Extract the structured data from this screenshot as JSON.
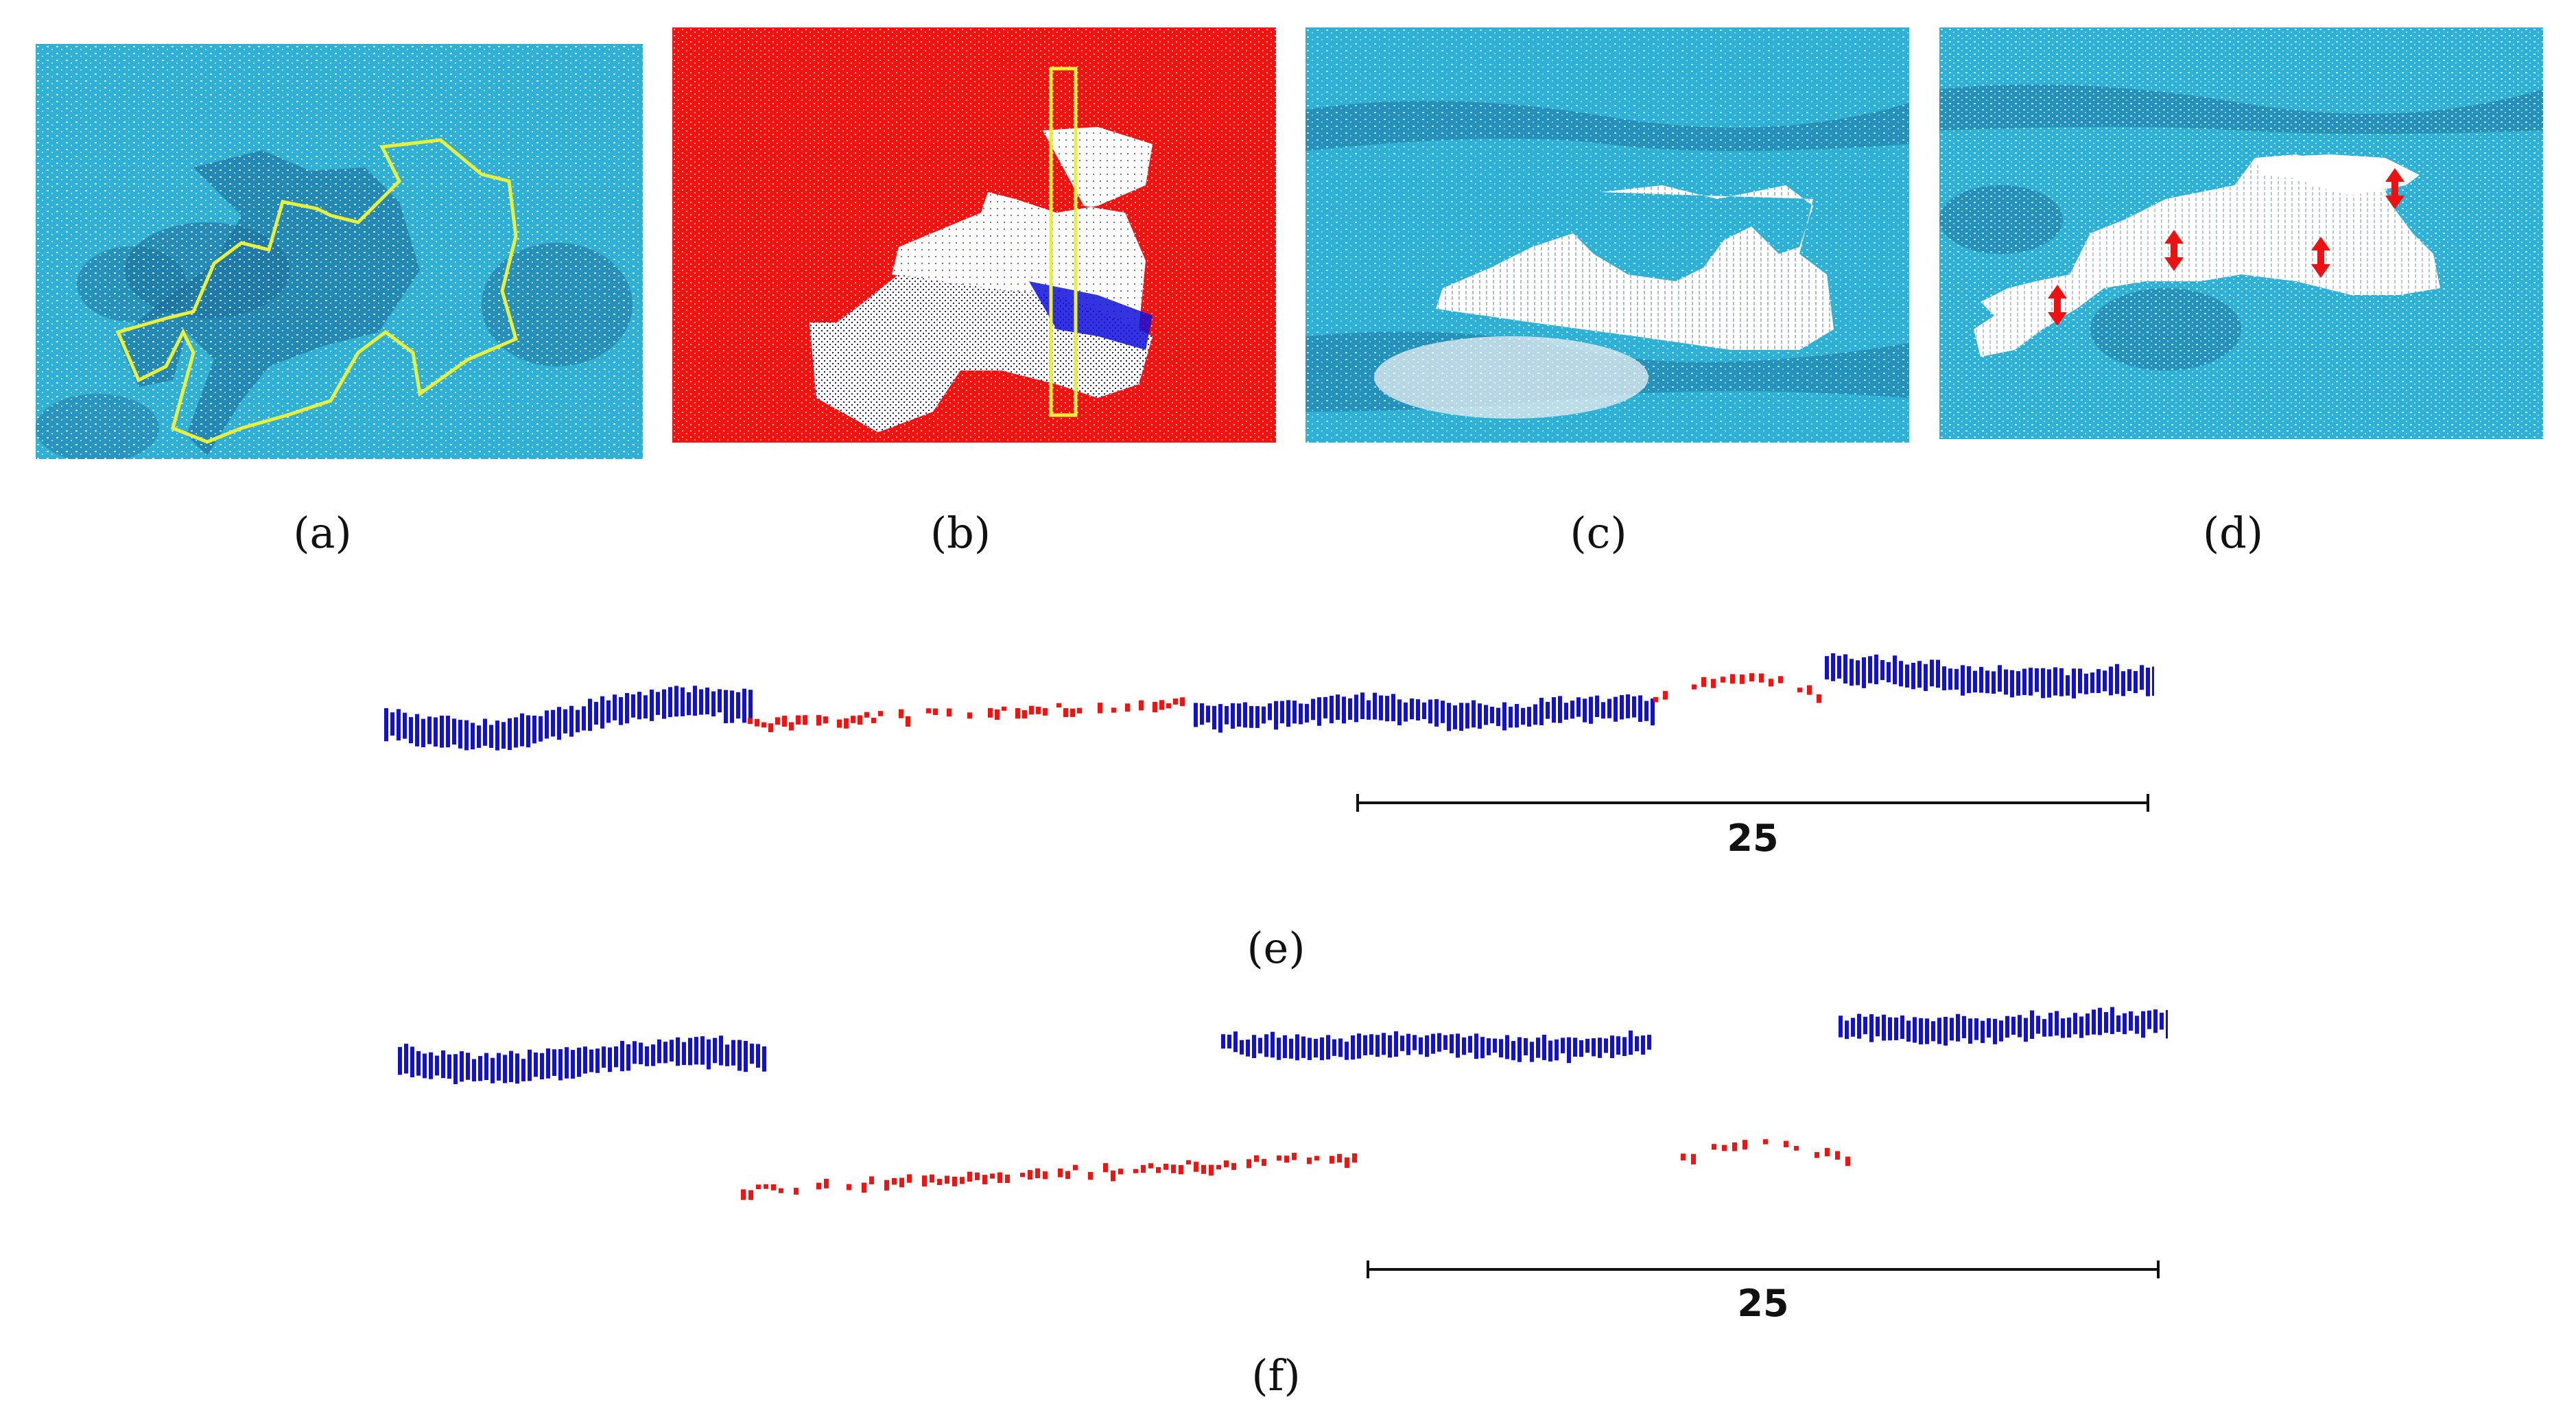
{
  "figure": {
    "panels": [
      {
        "id": "a",
        "label": "(a)",
        "content": "point cloud with yellow boundary outline"
      },
      {
        "id": "b",
        "label": "(b)",
        "content": "segmented point cloud with yellow profile rectangle"
      },
      {
        "id": "c",
        "label": "(c)",
        "content": "point cloud with white removed region"
      },
      {
        "id": "d",
        "label": "(d)",
        "content": "point cloud with red double-headed arrows"
      }
    ],
    "profiles": [
      {
        "id": "e",
        "label": "(e)",
        "scale_value": "25"
      },
      {
        "id": "f",
        "label": "(f)",
        "scale_value": "25"
      }
    ],
    "colors": {
      "sea": "#2fb0d6",
      "sea_dark": "#1b6f9e",
      "outline": "#e8f03a",
      "segment_red": "#f0130f",
      "segment_blue": "#1010d8",
      "arrow_red": "#ee1111"
    }
  }
}
